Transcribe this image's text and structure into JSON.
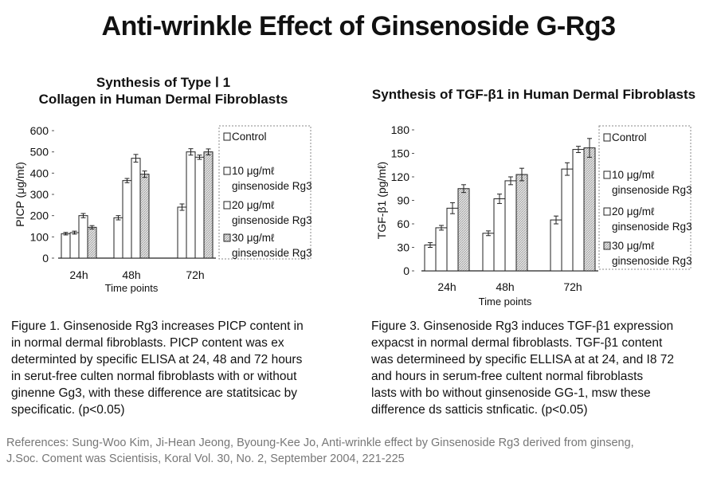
{
  "title": "Anti-wrinkle Effect of Ginsenoside G-Rg3",
  "colors": {
    "text": "#111111",
    "bar_outline": "#222222",
    "hatch": "#999999",
    "reference": "#777777"
  },
  "chart_data": [
    {
      "type": "bar",
      "title": "Synthesis of Type Ⅰ 1 Collagen in Human Dermal Fibroblasts",
      "title_lines": [
        "Synthesis of Type Ⅰ 1",
        "Collagen in Human Dermal Fibroblasts"
      ],
      "xlabel": "Time points",
      "ylabel": "PICP (μg/mℓ)",
      "ylim": [
        0,
        600
      ],
      "yticks": [
        "0",
        "100",
        "200",
        "300",
        "400",
        "500",
        "600"
      ],
      "categories": [
        "24h",
        "48h",
        "72h"
      ],
      "series": [
        {
          "name": "Control",
          "values": [
            115,
            190,
            240
          ],
          "errors": [
            6,
            10,
            15
          ],
          "fill": "white"
        },
        {
          "name": "10 μg/mℓ ginsenoside Rg3",
          "values": [
            120,
            365,
            500
          ],
          "errors": [
            7,
            10,
            15
          ],
          "fill": "white"
        },
        {
          "name": "20 μg/mℓ ginsenoside Rg3",
          "values": [
            200,
            470,
            475
          ],
          "errors": [
            10,
            18,
            10
          ],
          "fill": "white"
        },
        {
          "name": "30 μg/mℓ ginsenoside Rg3",
          "values": [
            145,
            395,
            500
          ],
          "errors": [
            8,
            15,
            14
          ],
          "fill": "hatch"
        }
      ],
      "legend": [
        [
          "Control"
        ],
        [
          "10 μg/mℓ",
          "ginsenoside Rg3"
        ],
        [
          "20 μg/mℓ",
          "ginsenoside Rg3"
        ],
        [
          "30 μg/mℓ",
          "ginsenoside Rg3"
        ]
      ],
      "legend_position": "right",
      "grid": false
    },
    {
      "type": "bar",
      "title": "Synthesis of TGF-β1 in Human Dermal Fibroblasts",
      "xlabel": "Time points",
      "ylabel": "TGF-β1 (pg/mℓ)",
      "ylim": [
        0,
        180
      ],
      "yticks": [
        "0",
        "30",
        "60",
        "90",
        "120",
        "150",
        "180"
      ],
      "categories": [
        "24h",
        "48h",
        "72h"
      ],
      "series": [
        {
          "name": "Control",
          "values": [
            33,
            48,
            65
          ],
          "errors": [
            3,
            3,
            5
          ],
          "fill": "white"
        },
        {
          "name": "10 μg/mℓ ginsenoside Rg3",
          "values": [
            55,
            92,
            130
          ],
          "errors": [
            3,
            6,
            8
          ],
          "fill": "white"
        },
        {
          "name": "20 μg/mℓ ginsenoside Rg3",
          "values": [
            80,
            115,
            155
          ],
          "errors": [
            7,
            5,
            4
          ],
          "fill": "white"
        },
        {
          "name": "30 μg/mℓ ginsenoside Rg3",
          "values": [
            105,
            123,
            157
          ],
          "errors": [
            5,
            8,
            12
          ],
          "fill": "hatch"
        }
      ],
      "legend": [
        [
          "Control"
        ],
        [
          "10 μg/mℓ",
          "ginsenoside Rg3"
        ],
        [
          "20 μg/mℓ",
          "ginsenoside Rg3"
        ],
        [
          "30 μg/mℓ",
          "ginsenoside Rg3"
        ]
      ],
      "legend_position": "right",
      "grid": false
    }
  ],
  "captions": [
    {
      "lines": [
        "Figure 1. Ginsenoside Rg3 increases PICP content in",
        "in normal dermal fibroblasts. PICP content was ex",
        "determinted by specific ELISA at 24, 48 and 72 hours",
        "in serut-free culten normal fibroblasts with or without",
        "ginenne Gg3, with these difference are statitsicac by",
        "specificatic. (p<0.05)"
      ]
    },
    {
      "lines": [
        "Figure 3. Ginsenoside Rg3 induces TGF-β1 expression",
        "expacst in normal dermal fibroblasts. TGF-β1 content",
        "was determineed by specific ELLISA at at 24, and I8 72",
        "and hours in serum-free cultent normal fibroblasts",
        "lasts with bo without ginsenoside GG-1, msw these",
        "difference ds satticis stnficatic. (p<0.05)"
      ]
    }
  ],
  "references": [
    "References: Sung-Woo Kim, Ji-Hean Jeong, Byoung-Kee Jo, Anti-wrinkle effect by Ginsenoside Rg3 derived from ginseng,",
    "J.Soc. Coment was Scientisis, Koral Vol. 30, No. 2, September 2004, 221-225"
  ]
}
